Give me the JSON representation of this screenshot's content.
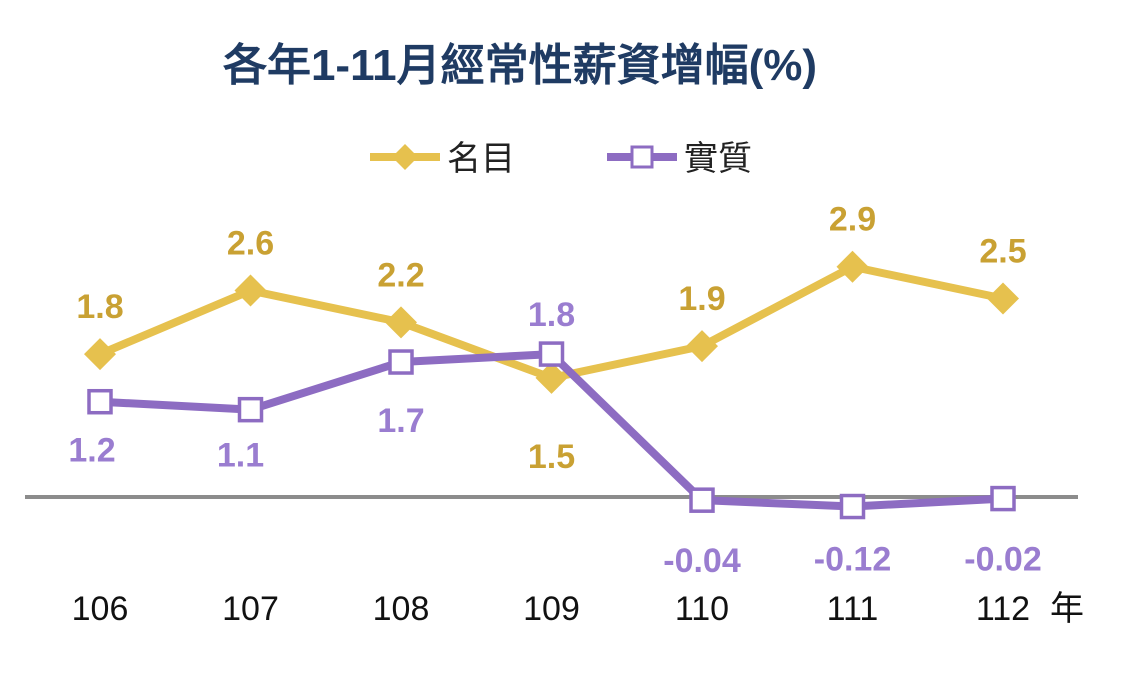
{
  "chart_data": {
    "type": "line",
    "title": "各年1-11月經常性薪資增幅(%)",
    "categories": [
      "106",
      "107",
      "108",
      "109",
      "110",
      "111",
      "112"
    ],
    "x_unit": "年",
    "series": [
      {
        "name": "名目",
        "values": [
          1.8,
          2.6,
          2.2,
          1.5,
          1.9,
          2.9,
          2.5
        ],
        "labels": [
          "1.8",
          "2.6",
          "2.2",
          "1.5",
          "1.9",
          "2.9",
          "2.5"
        ],
        "color": "#E6C14E",
        "label_color": "#C9A133",
        "marker": "diamond"
      },
      {
        "name": "實質",
        "values": [
          1.2,
          1.1,
          1.7,
          1.8,
          -0.04,
          -0.12,
          -0.02
        ],
        "labels": [
          "1.2",
          "1.1",
          "1.7",
          "1.8",
          "-0.04",
          "-0.12",
          "-0.02"
        ],
        "color": "#8D6CC2",
        "label_color": "#9A7DD0",
        "marker": "hollow-square"
      }
    ],
    "ylim": [
      -0.5,
      3.5
    ],
    "grid": false,
    "zero_line": true,
    "legend": "top-center",
    "title_color": "#1F3B63"
  }
}
